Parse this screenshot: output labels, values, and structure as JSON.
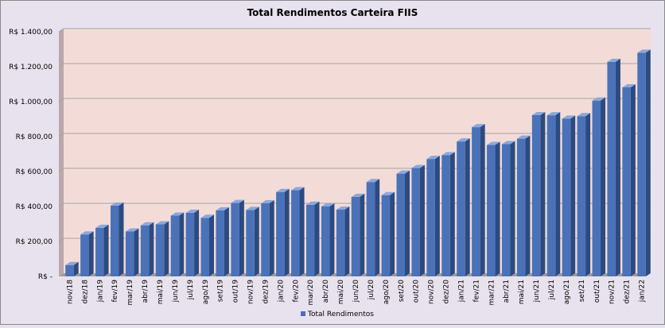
{
  "chart_data": {
    "type": "bar",
    "title": "Total Rendimentos Carteira FIIS",
    "xlabel": "",
    "ylabel": "",
    "ylim": [
      0,
      1400
    ],
    "yticks": [
      0,
      200,
      400,
      600,
      800,
      1000,
      1200,
      1400
    ],
    "ytick_labels": [
      "R$ -",
      "R$ 200,00",
      "R$ 400,00",
      "R$ 600,00",
      "R$ 800,00",
      "R$ 1.000,00",
      "R$ 1.200,00",
      "R$ 1.400,00"
    ],
    "grid": true,
    "legend_position": "bottom",
    "categories": [
      "nov/18",
      "dez/18",
      "jan/19",
      "fev/19",
      "mar/19",
      "abr/19",
      "mai/19",
      "jun/19",
      "jul/19",
      "ago/19",
      "set/19",
      "out/19",
      "nov/19",
      "dez/19",
      "jan/20",
      "fev/20",
      "mar/20",
      "abr/20",
      "mai/20",
      "jun/20",
      "jul/20",
      "ago/20",
      "set/20",
      "out/20",
      "nov/20",
      "dez/20",
      "jan/21",
      "fev/21",
      "mar/21",
      "abr/21",
      "mai/21",
      "jun/21",
      "jul/21",
      "ago/21",
      "set/21",
      "out/21",
      "nov/21",
      "dez/21",
      "jan/22"
    ],
    "series": [
      {
        "name": "Total Rendimentos",
        "color": "#4a72b8",
        "values": [
          65,
          240,
          278,
          405,
          257,
          292,
          298,
          348,
          364,
          335,
          378,
          420,
          380,
          418,
          483,
          493,
          410,
          400,
          382,
          455,
          540,
          465,
          588,
          620,
          672,
          694,
          772,
          854,
          752,
          757,
          788,
          923,
          922,
          903,
          917,
          1006,
          1228,
          1082,
          1280
        ]
      }
    ],
    "colors": {
      "background": "#e8e2ee",
      "plot_area": "#f3dcd8",
      "gridline": "#a5a5a5",
      "bar_front": "#4a72b8",
      "bar_top": "#8ba8dc",
      "bar_side": "#2c4a80",
      "wall_side": "#b8a8a8",
      "floor": "#9c9c9c"
    }
  }
}
